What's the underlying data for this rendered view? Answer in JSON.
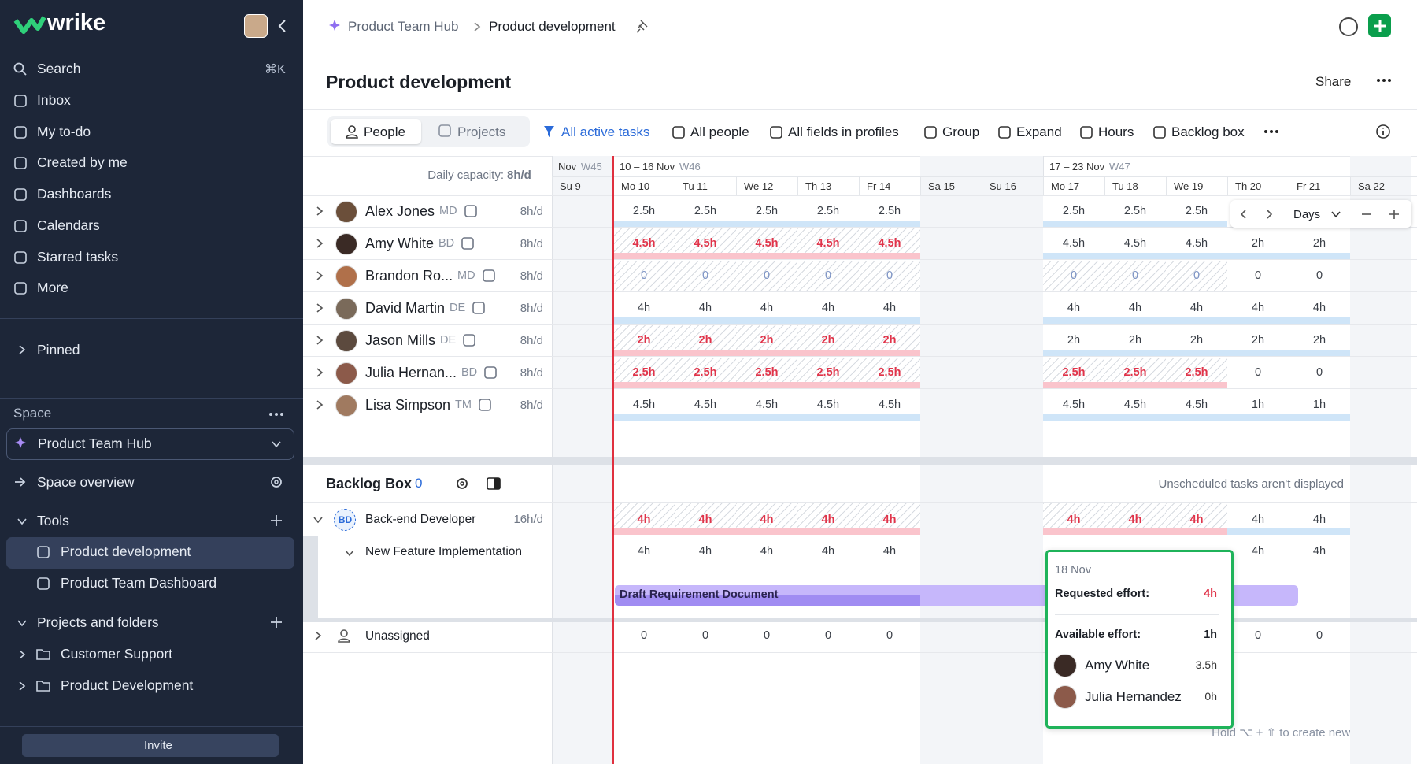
{
  "sidebar": {
    "logo": "wrike",
    "search": "Search",
    "shortcut": "⌘K",
    "nav": [
      "Inbox",
      "My to-do",
      "Created by me",
      "Dashboards",
      "Calendars",
      "Starred tasks",
      "More"
    ],
    "pinned": "Pinned",
    "space_label": "Space",
    "space": "Product Team Hub",
    "space_overview": "Space overview",
    "tools": "Tools",
    "tool_items": [
      "Product development",
      "Product Team Dashboard"
    ],
    "projects": "Projects and folders",
    "folders": [
      "Customer Support",
      "Product Development"
    ],
    "invite": "Invite"
  },
  "header": {
    "breadcrumb": [
      "Product Team Hub",
      "Product development"
    ],
    "title": "Product development",
    "share": "Share"
  },
  "toolbar": {
    "tabs": [
      "People",
      "Projects"
    ],
    "filters": [
      "All active tasks",
      "All people",
      "All fields in profiles",
      "Group",
      "Expand",
      "Hours",
      "Backlog box"
    ]
  },
  "timeline": {
    "capacity_label": "Daily capacity:",
    "capacity": "8h/d",
    "zoom": "Days",
    "weeks": [
      {
        "dates": "Nov",
        "week": "W45"
      },
      {
        "dates": "10 – 16 Nov",
        "week": "W46"
      },
      {
        "dates": "17 – 23 Nov",
        "week": "W47"
      }
    ],
    "days": [
      "Su 9",
      "Mo 10",
      "Tu 11",
      "We 12",
      "Th 13",
      "Fr 14",
      "Sa 15",
      "Su 16",
      "Mo 17",
      "Tu 18",
      "We 19",
      "Th 20",
      "Fr 21",
      "Sa 22"
    ]
  },
  "people": [
    {
      "name": "Alex Jones",
      "role": "MD",
      "capacity": "8h/d",
      "cells": [
        null,
        "2.5h",
        "2.5h",
        "2.5h",
        "2.5h",
        "2.5h",
        null,
        null,
        "2.5h",
        "2.5h",
        "2.5h",
        null,
        null,
        null
      ],
      "states": [
        null,
        "ok",
        "ok",
        "ok",
        "ok",
        "ok",
        null,
        null,
        "ok",
        "ok",
        "ok",
        null,
        null,
        null
      ]
    },
    {
      "name": "Amy White",
      "role": "BD",
      "capacity": "8h/d",
      "cells": [
        null,
        "4.5h",
        "4.5h",
        "4.5h",
        "4.5h",
        "4.5h",
        null,
        null,
        "4.5h",
        "4.5h",
        "4.5h",
        "2h",
        "2h",
        null
      ],
      "states": [
        null,
        "over",
        "over",
        "over",
        "over",
        "over",
        null,
        null,
        "ok",
        "ok",
        "ok",
        "ok",
        "ok",
        null
      ]
    },
    {
      "name": "Brandon Ro...",
      "role": "MD",
      "capacity": "8h/d",
      "cells": [
        null,
        "0",
        "0",
        "0",
        "0",
        "0",
        null,
        null,
        "0",
        "0",
        "0",
        "0",
        "0",
        null
      ],
      "states": [
        null,
        "off",
        "off",
        "off",
        "off",
        "off",
        null,
        null,
        "off",
        "off",
        "off",
        "free",
        "free",
        null
      ]
    },
    {
      "name": "David Martin",
      "role": "DE",
      "capacity": "8h/d",
      "cells": [
        null,
        "4h",
        "4h",
        "4h",
        "4h",
        "4h",
        null,
        null,
        "4h",
        "4h",
        "4h",
        "4h",
        "4h",
        null
      ],
      "states": [
        null,
        "ok",
        "ok",
        "ok",
        "ok",
        "ok",
        null,
        null,
        "ok",
        "ok",
        "ok",
        "ok",
        "ok",
        null
      ]
    },
    {
      "name": "Jason Mills",
      "role": "DE",
      "capacity": "8h/d",
      "cells": [
        null,
        "2h",
        "2h",
        "2h",
        "2h",
        "2h",
        null,
        null,
        "2h",
        "2h",
        "2h",
        "2h",
        "2h",
        null
      ],
      "states": [
        null,
        "over",
        "over",
        "over",
        "over",
        "over",
        null,
        null,
        "ok",
        "ok",
        "ok",
        "ok",
        "ok",
        null
      ]
    },
    {
      "name": "Julia Hernan...",
      "role": "BD",
      "capacity": "8h/d",
      "cells": [
        null,
        "2.5h",
        "2.5h",
        "2.5h",
        "2.5h",
        "2.5h",
        null,
        null,
        "2.5h",
        "2.5h",
        "2.5h",
        "0",
        "0",
        null
      ],
      "states": [
        null,
        "over",
        "over",
        "over",
        "over",
        "over",
        null,
        null,
        "over",
        "over",
        "over",
        "free",
        "free",
        null
      ]
    },
    {
      "name": "Lisa Simpson",
      "role": "TM",
      "capacity": "8h/d",
      "cells": [
        null,
        "4.5h",
        "4.5h",
        "4.5h",
        "4.5h",
        "4.5h",
        null,
        null,
        "4.5h",
        "4.5h",
        "4.5h",
        "1h",
        "1h",
        null
      ],
      "states": [
        null,
        "ok",
        "ok",
        "ok",
        "ok",
        "ok",
        null,
        null,
        "ok",
        "ok",
        "ok",
        "ok",
        "ok",
        null
      ]
    }
  ],
  "backlog": {
    "title": "Backlog Box",
    "count": "0",
    "note": "Unscheduled tasks aren't displayed",
    "hint": "Hold ⌥ + ⇧ to create new task",
    "role": {
      "initials": "BD",
      "name": "Back-end Developer",
      "capacity": "16h/d",
      "cells": [
        null,
        "4h",
        "4h",
        "4h",
        "4h",
        "4h",
        null,
        null,
        "4h",
        "4h",
        "4h",
        "4h",
        "4h",
        null
      ],
      "states": [
        null,
        "over",
        "over",
        "over",
        "over",
        "over",
        null,
        null,
        "over",
        "over",
        "over",
        "ok",
        "ok",
        null
      ]
    },
    "task": {
      "name": "New Feature Implementation",
      "bar": "Draft Requirement Document",
      "cells": [
        null,
        "4h",
        "4h",
        "4h",
        "4h",
        "4h",
        null,
        null,
        null,
        null,
        null,
        "4h",
        "4h",
        null
      ]
    },
    "unassigned": {
      "name": "Unassigned",
      "cells": [
        null,
        "0",
        "0",
        "0",
        "0",
        "0",
        null,
        null,
        null,
        null,
        null,
        "0",
        "0",
        null
      ]
    }
  },
  "tooltip": {
    "date": "18 Nov",
    "requested_label": "Requested effort:",
    "requested": "4h",
    "available_label": "Available effort:",
    "available": "1h",
    "people": [
      {
        "name": "Amy White",
        "hours": "3.5h"
      },
      {
        "name": "Julia Hernandez",
        "hours": "0h"
      }
    ]
  }
}
